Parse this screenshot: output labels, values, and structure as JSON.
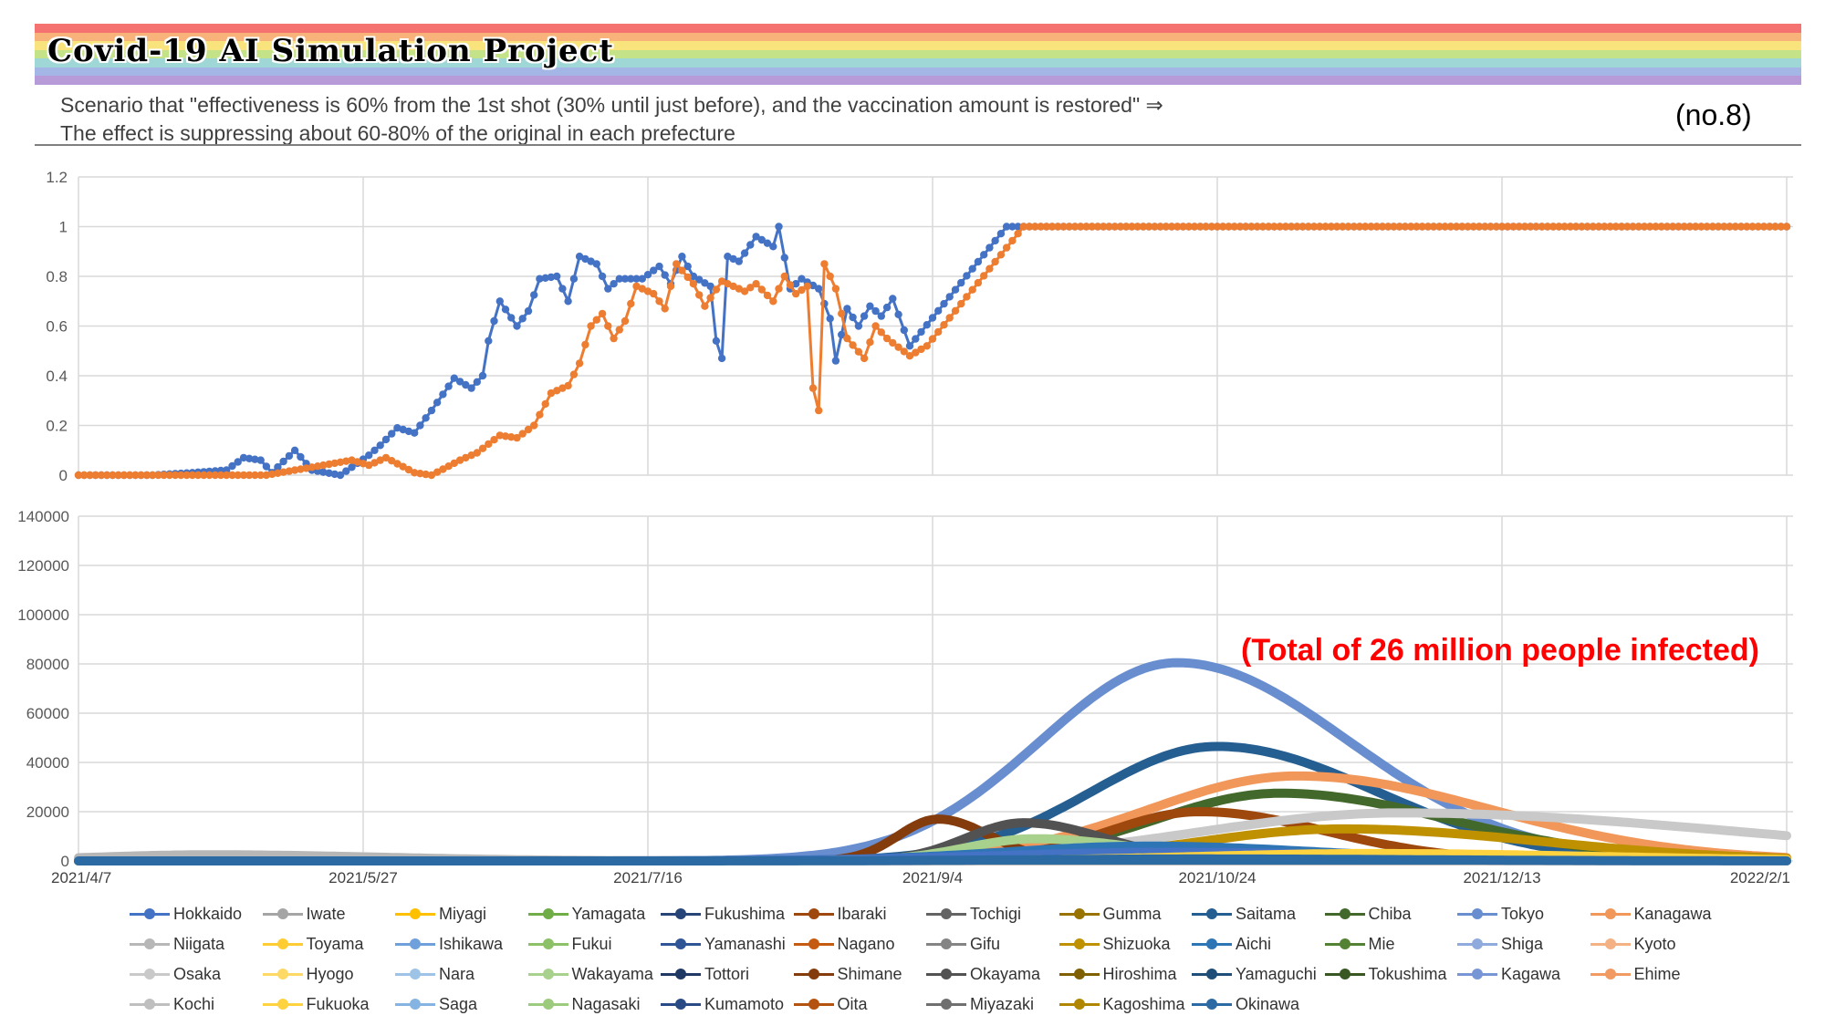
{
  "header": {
    "title": "Covid-19 AI Simulation Project",
    "subtitle_line1": "Scenario that \"effectiveness is 60% from the 1st shot (30% until just before), and the vaccination amount is restored\" ⇒",
    "subtitle_line2": "The effect is suppressing about 60-80% of the original in each prefecture",
    "number": "(no.8)",
    "banner_colors": [
      "#f4726f",
      "#f7b37a",
      "#f8e37c",
      "#c4e288",
      "#9fd6d6",
      "#a3b6e6",
      "#b79ad8"
    ]
  },
  "annotation": "(Total of 26 million people infected)",
  "legend": [
    {
      "name": "Hokkaido",
      "color": "#4472c4"
    },
    {
      "name": "Iwate",
      "color": "#a5a5a5"
    },
    {
      "name": "Miyagi",
      "color": "#ffc000"
    },
    {
      "name": "Yamagata",
      "color": "#70ad47"
    },
    {
      "name": "Fukushima",
      "color": "#264478"
    },
    {
      "name": "Ibaraki",
      "color": "#9e480e"
    },
    {
      "name": "Tochigi",
      "color": "#636363"
    },
    {
      "name": "Gumma",
      "color": "#997300"
    },
    {
      "name": "Saitama",
      "color": "#255e91"
    },
    {
      "name": "Chiba",
      "color": "#43682b"
    },
    {
      "name": "Tokyo",
      "color": "#698ed0"
    },
    {
      "name": "Kanagawa",
      "color": "#f1975a"
    },
    {
      "name": "Niigata",
      "color": "#b7b7b7"
    },
    {
      "name": "Toyama",
      "color": "#ffcd33"
    },
    {
      "name": "Ishikawa",
      "color": "#6fa0dc"
    },
    {
      "name": "Fukui",
      "color": "#8cc168"
    },
    {
      "name": "Yamanashi",
      "color": "#2f5597"
    },
    {
      "name": "Nagano",
      "color": "#c55a11"
    },
    {
      "name": "Gifu",
      "color": "#848484"
    },
    {
      "name": "Shizuoka",
      "color": "#bf9000"
    },
    {
      "name": "Aichi",
      "color": "#2e75b6"
    },
    {
      "name": "Mie",
      "color": "#548235"
    },
    {
      "name": "Shiga",
      "color": "#8faadc"
    },
    {
      "name": "Kyoto",
      "color": "#f4b183"
    },
    {
      "name": "Osaka",
      "color": "#c9c9c9"
    },
    {
      "name": "Hyogo",
      "color": "#ffd966"
    },
    {
      "name": "Nara",
      "color": "#9dc3e6"
    },
    {
      "name": "Wakayama",
      "color": "#a9d18e"
    },
    {
      "name": "Tottori",
      "color": "#1f3864"
    },
    {
      "name": "Shimane",
      "color": "#843c0c"
    },
    {
      "name": "Okayama",
      "color": "#525252"
    },
    {
      "name": "Hiroshima",
      "color": "#7f6000"
    },
    {
      "name": "Yamaguchi",
      "color": "#1f4e79"
    },
    {
      "name": "Tokushima",
      "color": "#385723"
    },
    {
      "name": "Kagawa",
      "color": "#7895d6"
    },
    {
      "name": "Ehime",
      "color": "#f19a62"
    },
    {
      "name": "Kochi",
      "color": "#bfbfbf"
    },
    {
      "name": "Fukuoka",
      "color": "#ffd23f"
    },
    {
      "name": "Saga",
      "color": "#86b4e2"
    },
    {
      "name": "Nagasaki",
      "color": "#9ccb7e"
    },
    {
      "name": "Kumamoto",
      "color": "#2a4a86"
    },
    {
      "name": "Oita",
      "color": "#b4530f"
    },
    {
      "name": "Miyazaki",
      "color": "#6f6f6f"
    },
    {
      "name": "Kagoshima",
      "color": "#b08600"
    },
    {
      "name": "Okinawa",
      "color": "#2c6aa3"
    }
  ],
  "chart_data": [
    {
      "type": "line",
      "x_start": "2021/4/7",
      "x_end": "2022/2/1",
      "ylim": [
        0,
        1.2
      ],
      "yticks": [
        "0",
        "0.2",
        "0.4",
        "0.6",
        "0.8",
        "1",
        "1.2"
      ],
      "grid": true,
      "series": [
        {
          "color": "#4472c4",
          "marker": "circle",
          "points": [
            [
              "2021/4/7",
              0
            ],
            [
              "2021/4/20",
              0
            ],
            [
              "2021/4/27",
              0.01
            ],
            [
              "2021/5/3",
              0.02
            ],
            [
              "2021/5/6",
              0.07
            ],
            [
              "2021/5/9",
              0.06
            ],
            [
              "2021/5/11",
              0.01
            ],
            [
              "2021/5/15",
              0.1
            ],
            [
              "2021/5/18",
              0.02
            ],
            [
              "2021/5/23",
              0.0
            ],
            [
              "2021/5/28",
              0.08
            ],
            [
              "2021/5/30",
              0.12
            ],
            [
              "2021/6/2",
              0.19
            ],
            [
              "2021/6/5",
              0.17
            ],
            [
              "2021/6/8",
              0.26
            ],
            [
              "2021/6/12",
              0.39
            ],
            [
              "2021/6/15",
              0.35
            ],
            [
              "2021/6/17",
              0.4
            ],
            [
              "2021/6/18",
              0.54
            ],
            [
              "2021/6/20",
              0.7
            ],
            [
              "2021/6/23",
              0.6
            ],
            [
              "2021/6/25",
              0.66
            ],
            [
              "2021/6/27",
              0.79
            ],
            [
              "2021/6/30",
              0.8
            ],
            [
              "2021/7/2",
              0.7
            ],
            [
              "2021/7/4",
              0.88
            ],
            [
              "2021/7/7",
              0.85
            ],
            [
              "2021/7/9",
              0.75
            ],
            [
              "2021/7/11",
              0.79
            ],
            [
              "2021/7/15",
              0.79
            ],
            [
              "2021/7/18",
              0.84
            ],
            [
              "2021/7/20",
              0.77
            ],
            [
              "2021/7/22",
              0.88
            ],
            [
              "2021/7/24",
              0.8
            ],
            [
              "2021/7/27",
              0.76
            ],
            [
              "2021/7/28",
              0.54
            ],
            [
              "2021/7/29",
              0.47
            ],
            [
              "2021/7/30",
              0.88
            ],
            [
              "2021/8/1",
              0.86
            ],
            [
              "2021/8/4",
              0.96
            ],
            [
              "2021/8/7",
              0.92
            ],
            [
              "2021/8/8",
              1.0
            ],
            [
              "2021/8/10",
              0.75
            ],
            [
              "2021/8/12",
              0.79
            ],
            [
              "2021/8/15",
              0.75
            ],
            [
              "2021/8/17",
              0.63
            ],
            [
              "2021/8/18",
              0.46
            ],
            [
              "2021/8/20",
              0.67
            ],
            [
              "2021/8/22",
              0.6
            ],
            [
              "2021/8/24",
              0.68
            ],
            [
              "2021/8/26",
              0.64
            ],
            [
              "2021/8/28",
              0.71
            ],
            [
              "2021/8/31",
              0.52
            ],
            [
              "2021/9/17",
              1.0
            ],
            [
              "2022/2/1",
              1.0
            ]
          ]
        },
        {
          "color": "#ed7d31",
          "marker": "circle",
          "points": [
            [
              "2021/4/7",
              0
            ],
            [
              "2021/5/10",
              0
            ],
            [
              "2021/5/20",
              0.04
            ],
            [
              "2021/5/25",
              0.06
            ],
            [
              "2021/5/28",
              0.04
            ],
            [
              "2021/5/31",
              0.07
            ],
            [
              "2021/6/5",
              0.01
            ],
            [
              "2021/6/8",
              0.0
            ],
            [
              "2021/6/13",
              0.06
            ],
            [
              "2021/6/16",
              0.09
            ],
            [
              "2021/6/20",
              0.16
            ],
            [
              "2021/6/23",
              0.15
            ],
            [
              "2021/6/26",
              0.2
            ],
            [
              "2021/6/29",
              0.33
            ],
            [
              "2021/7/2",
              0.36
            ],
            [
              "2021/7/4",
              0.45
            ],
            [
              "2021/7/6",
              0.6
            ],
            [
              "2021/7/8",
              0.65
            ],
            [
              "2021/7/10",
              0.55
            ],
            [
              "2021/7/12",
              0.62
            ],
            [
              "2021/7/14",
              0.76
            ],
            [
              "2021/7/17",
              0.73
            ],
            [
              "2021/7/19",
              0.67
            ],
            [
              "2021/7/21",
              0.85
            ],
            [
              "2021/7/24",
              0.77
            ],
            [
              "2021/7/26",
              0.68
            ],
            [
              "2021/7/29",
              0.78
            ],
            [
              "2021/8/2",
              0.74
            ],
            [
              "2021/8/4",
              0.77
            ],
            [
              "2021/8/7",
              0.7
            ],
            [
              "2021/8/9",
              0.8
            ],
            [
              "2021/8/11",
              0.73
            ],
            [
              "2021/8/13",
              0.76
            ],
            [
              "2021/8/14",
              0.35
            ],
            [
              "2021/8/15",
              0.26
            ],
            [
              "2021/8/16",
              0.85
            ],
            [
              "2021/8/18",
              0.75
            ],
            [
              "2021/8/20",
              0.55
            ],
            [
              "2021/8/23",
              0.47
            ],
            [
              "2021/8/25",
              0.6
            ],
            [
              "2021/8/27",
              0.55
            ],
            [
              "2021/8/31",
              0.48
            ],
            [
              "2021/9/3",
              0.52
            ],
            [
              "2021/9/20",
              1.0
            ],
            [
              "2022/2/1",
              1.0
            ]
          ]
        }
      ]
    },
    {
      "type": "line",
      "x_categories": [
        "2021/4/7",
        "2021/5/27",
        "2021/7/16",
        "2021/9/4",
        "2021/10/24",
        "2021/12/13",
        "2022/2/1"
      ],
      "ylim": [
        0,
        140000
      ],
      "yticks": [
        "0",
        "20000",
        "40000",
        "60000",
        "80000",
        "100000",
        "120000",
        "140000"
      ],
      "grid": true,
      "series": [
        {
          "name": "Tokyo",
          "color": "#698ed0",
          "peak_date": "2021/10/17",
          "peak": 80500,
          "sd_left": 24,
          "sd_right": 30
        },
        {
          "name": "Saitama",
          "color": "#255e91",
          "peak_date": "2021/10/24",
          "peak": 46500,
          "sd_left": 22,
          "sd_right": 28
        },
        {
          "name": "Kanagawa",
          "color": "#f1975a",
          "peak_date": "2021/11/7",
          "peak": 34500,
          "sd_left": 26,
          "sd_right": 34
        },
        {
          "name": "Chiba",
          "color": "#43682b",
          "peak_date": "2021/11/4",
          "peak": 27500,
          "sd_left": 22,
          "sd_right": 30
        },
        {
          "name": "Osaka",
          "color": "#c9c9c9",
          "peak_date": "2021/11/25",
          "peak": 19500,
          "sd_left": 35,
          "sd_right": 60
        },
        {
          "name": "Ibaraki",
          "color": "#9e480e",
          "peak_date": "2021/10/21",
          "peak": 20000,
          "sd_left": 16,
          "sd_right": 22
        },
        {
          "name": "Shimane",
          "color": "#843c0c",
          "peak_date": "2021/9/5",
          "peak": 17000,
          "sd_left": 7,
          "sd_right": 9
        },
        {
          "name": "Okayama",
          "color": "#525252",
          "peak_date": "2021/9/20",
          "peak": 15500,
          "sd_left": 10,
          "sd_right": 14
        },
        {
          "name": "Shizuoka",
          "color": "#bf9000",
          "peak_date": "2021/11/15",
          "peak": 13000,
          "sd_left": 25,
          "sd_right": 35
        },
        {
          "name": "Wakayama",
          "color": "#a9d18e",
          "peak_date": "2021/9/22",
          "peak": 9000,
          "sd_left": 12,
          "sd_right": 18
        },
        {
          "name": "Aichi",
          "color": "#2e75b6",
          "peak_date": "2021/10/12",
          "peak": 6000,
          "sd_left": 25,
          "sd_right": 30
        },
        {
          "name": "Hokkaido",
          "color": "#4472c4",
          "peak_date": "2021/10/15",
          "peak": 3500,
          "sd_left": 30,
          "sd_right": 40
        },
        {
          "name": "Niigata",
          "color": "#b7b7b7",
          "peak_date": "2021/4/30",
          "peak": 2500,
          "sd_left": 20,
          "sd_right": 30
        },
        {
          "name": "Fukuoka",
          "color": "#ffd23f",
          "peak_date": "2021/11/20",
          "peak": 3000,
          "sd_left": 30,
          "sd_right": 40
        },
        {
          "name": "Okinawa",
          "color": "#2c6aa3",
          "peak_date": "2021/10/20",
          "peak": 800,
          "sd_left": 30,
          "sd_right": 40
        }
      ]
    }
  ]
}
